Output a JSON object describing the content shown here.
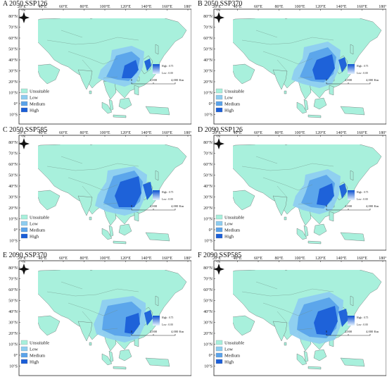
{
  "figure": {
    "panels": [
      {
        "title": "A 2050 SSP126"
      },
      {
        "title": "B 2050 SSP370"
      },
      {
        "title": "C 2050 SSP585"
      },
      {
        "title": "D 2090 SSP126"
      },
      {
        "title": "E 2090 SSP370"
      },
      {
        "title": "F 2090 SSP585"
      }
    ],
    "longitude_labels": [
      "20°E",
      "40°E",
      "60°E",
      "80°E",
      "100°E",
      "120°E",
      "140°E",
      "160°E",
      "180°"
    ],
    "latitude_labels": [
      "80°N",
      "70°N",
      "60°N",
      "50°N",
      "40°N",
      "30°N",
      "20°N",
      "10°N",
      "0°",
      "10°S"
    ],
    "north_arrow": "N",
    "value_scale": {
      "high": "High : 0.75",
      "low": "Low : 0.00"
    },
    "scale_bar": {
      "ticks": [
        "0",
        "2,000",
        "4,000 Km"
      ]
    },
    "legend": [
      {
        "label": "Unsuitable",
        "color": "#a8f0dc"
      },
      {
        "label": "Low",
        "color": "#8ecdf0"
      },
      {
        "label": "Medium",
        "color": "#5aa3ea"
      },
      {
        "label": "High",
        "color": "#1a5ed8"
      }
    ]
  }
}
